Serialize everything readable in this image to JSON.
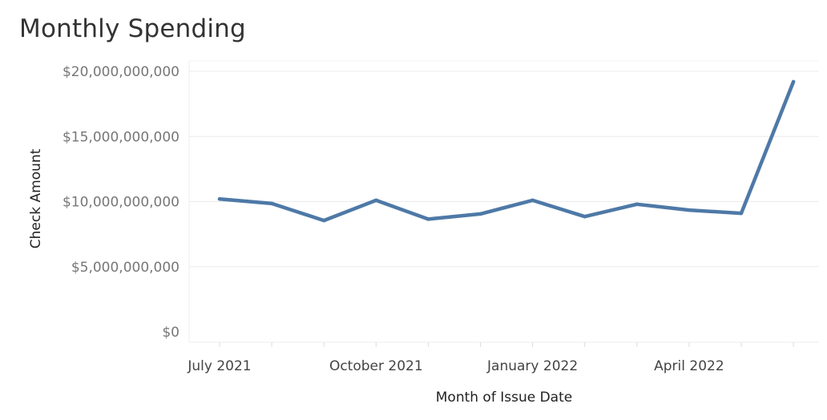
{
  "title": "Monthly Spending",
  "chart_data": {
    "type": "line",
    "title": "Monthly Spending",
    "xlabel": "Month of Issue Date",
    "ylabel": "Check Amount",
    "x": [
      "2021-07",
      "2021-08",
      "2021-09",
      "2021-10",
      "2021-11",
      "2021-12",
      "2022-01",
      "2022-02",
      "2022-03",
      "2022-04",
      "2022-05",
      "2022-06"
    ],
    "values": [
      10200000000,
      9850000000,
      8550000000,
      10100000000,
      8650000000,
      9050000000,
      10100000000,
      8850000000,
      9800000000,
      9350000000,
      9100000000,
      19200000000
    ],
    "ylim": [
      0,
      20000000000
    ],
    "yticks": [
      0,
      5000000000,
      10000000000,
      15000000000,
      20000000000
    ],
    "ytick_labels": [
      "$0",
      "$5,000,000,000",
      "$10,000,000,000",
      "$15,000,000,000",
      "$20,000,000,000"
    ],
    "xtick_labels": [
      {
        "month": "2021-07",
        "label": "July 2021"
      },
      {
        "month": "2021-10",
        "label": "October 2021"
      },
      {
        "month": "2022-01",
        "label": "January 2022"
      },
      {
        "month": "2022-04",
        "label": "April 2022"
      }
    ],
    "grid": true,
    "line_color": "#4e79a7"
  }
}
